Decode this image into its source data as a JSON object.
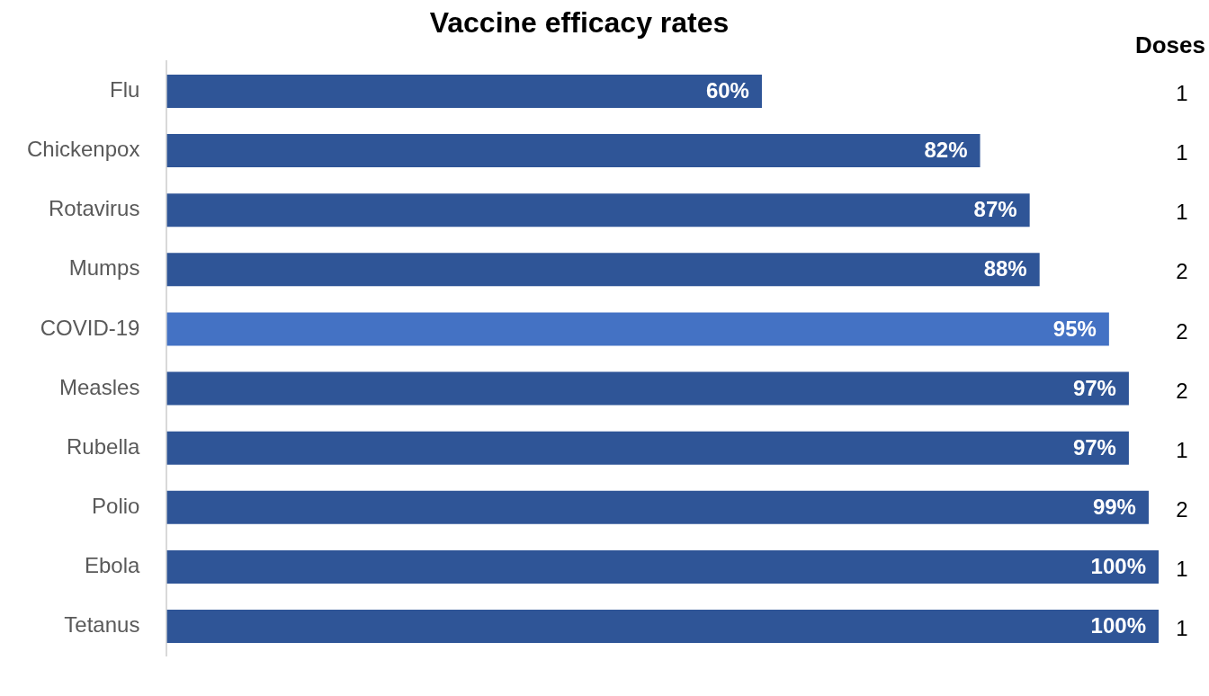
{
  "chart_data": {
    "type": "bar",
    "orientation": "horizontal",
    "title": "Vaccine efficacy rates",
    "categories": [
      "Flu",
      "Chickenpox",
      "Rotavirus",
      "Mumps",
      "COVID-19",
      "Measles",
      "Rubella",
      "Polio",
      "Ebola",
      "Tetanus"
    ],
    "values": [
      60,
      82,
      87,
      88,
      95,
      97,
      97,
      99,
      100,
      100
    ],
    "value_labels": [
      "60%",
      "82%",
      "87%",
      "88%",
      "95%",
      "97%",
      "97%",
      "99%",
      "100%",
      "100%"
    ],
    "colors": [
      "#2f5597",
      "#2f5597",
      "#2f5597",
      "#2f5597",
      "#4472c4",
      "#2f5597",
      "#2f5597",
      "#2f5597",
      "#2f5597",
      "#2f5597"
    ],
    "xlim": [
      0,
      100
    ],
    "tick_labels": "y",
    "grid": false,
    "legend": false,
    "annotations": [
      "Doses",
      "1",
      "1",
      "1",
      "2",
      "2",
      "2",
      "1",
      "2",
      "1",
      "1"
    ]
  }
}
